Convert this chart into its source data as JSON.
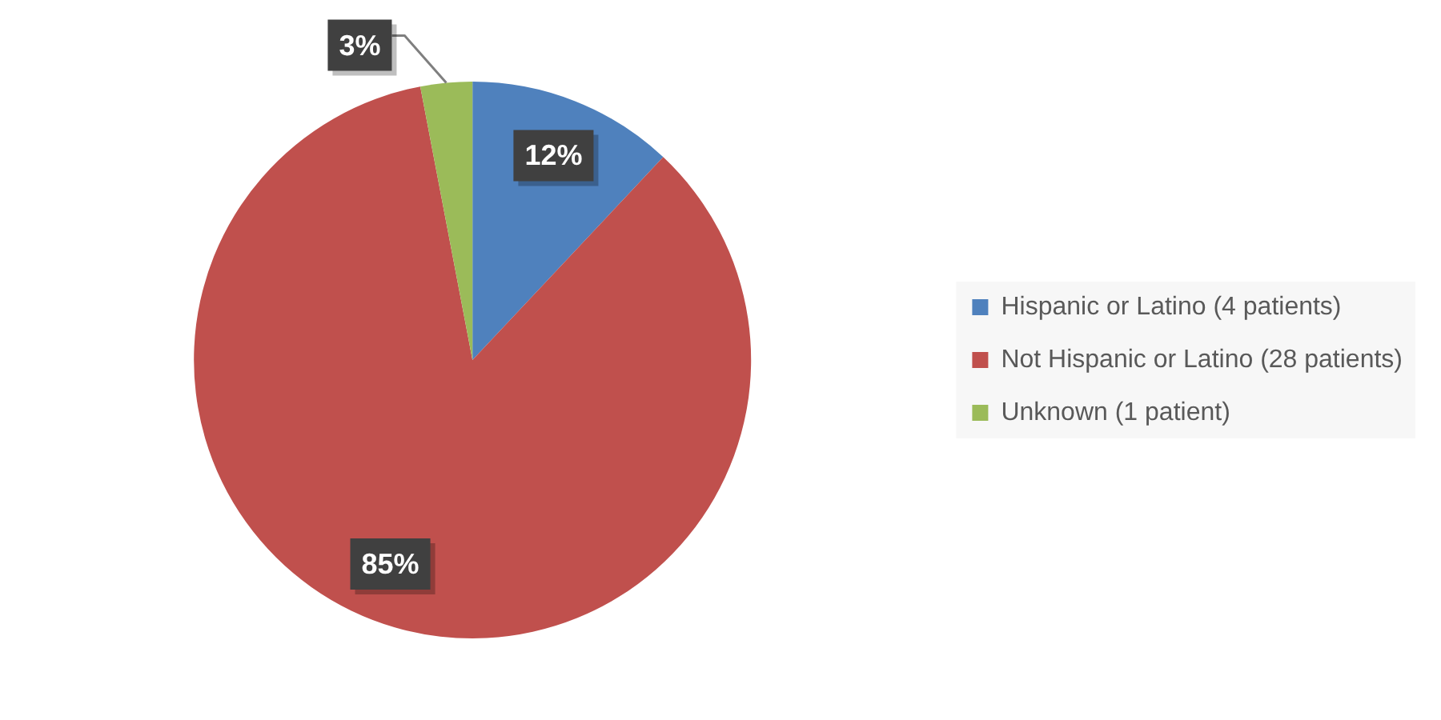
{
  "chart_data": {
    "type": "pie",
    "categories": [
      "Hispanic or Latino (4 patients)",
      "Not Hispanic or Latino (28 patients)",
      "Unknown (1 patient)"
    ],
    "values": [
      12,
      85,
      3
    ],
    "colors": [
      "#4f81bd",
      "#c0504d",
      "#9bbb59"
    ],
    "value_labels": [
      "12%",
      "85%",
      "3%"
    ],
    "legend": "right"
  }
}
